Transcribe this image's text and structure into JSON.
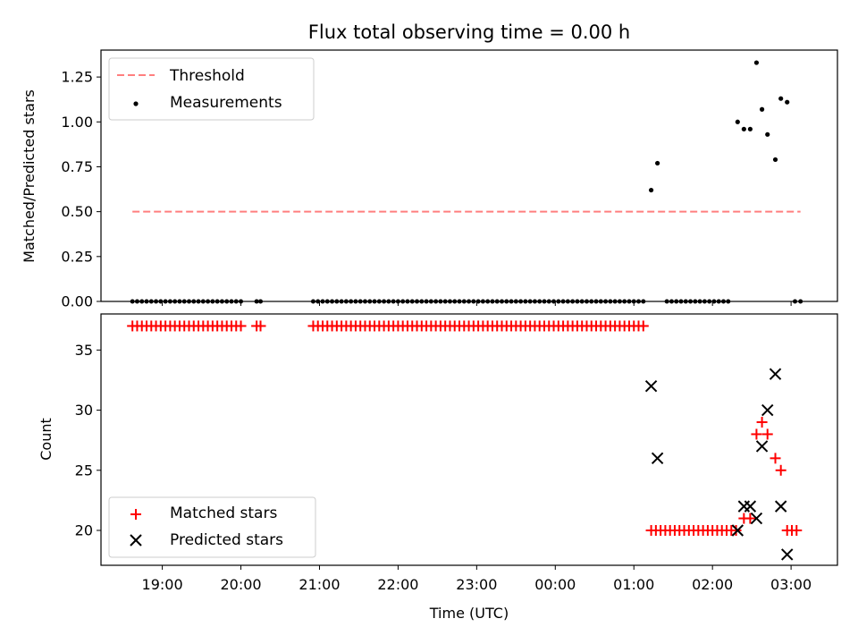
{
  "chart_data": [
    {
      "type": "scatter",
      "title": "Flux total observing time = 0.00 h",
      "xlabel": "",
      "ylabel": "Matched/Predicted stars",
      "xlim": [
        18.22,
        27.59
      ],
      "ylim": [
        0,
        1.4
      ],
      "yticks": [
        0.0,
        0.25,
        0.5,
        0.75,
        1.0,
        1.25
      ],
      "ytick_labels": [
        "0.00",
        "0.25",
        "0.50",
        "0.75",
        "1.00",
        "1.25"
      ],
      "xticks": [
        19,
        20,
        21,
        22,
        23,
        24,
        25,
        26,
        27
      ],
      "legend_position": "top-left",
      "threshold": {
        "name": "Threshold",
        "color": "#ff7f7f",
        "style": "dashed",
        "value": 0.5,
        "x_range": [
          18.62,
          27.12
        ]
      },
      "measurements": {
        "name": "Measurements",
        "color": "#000000",
        "zero_segments": [
          {
            "start": 18.62,
            "end": 20.0,
            "step": 0.06
          },
          {
            "start": 20.2,
            "end": 20.25,
            "step": 0.05
          },
          {
            "start": 20.92,
            "end": 25.15,
            "step": 0.06
          },
          {
            "start": 25.42,
            "end": 26.25,
            "step": 0.06
          },
          {
            "start": 27.05,
            "end": 27.12,
            "step": 0.07
          }
        ],
        "points": [
          {
            "x": 25.22,
            "y": 0.62
          },
          {
            "x": 25.3,
            "y": 0.77
          },
          {
            "x": 26.32,
            "y": 1.0
          },
          {
            "x": 26.4,
            "y": 0.96
          },
          {
            "x": 26.48,
            "y": 0.96
          },
          {
            "x": 26.56,
            "y": 1.33
          },
          {
            "x": 26.63,
            "y": 1.07
          },
          {
            "x": 26.7,
            "y": 0.93
          },
          {
            "x": 26.8,
            "y": 0.79
          },
          {
            "x": 26.87,
            "y": 1.13
          },
          {
            "x": 26.95,
            "y": 1.11
          }
        ]
      }
    },
    {
      "type": "scatter",
      "title": "",
      "xlabel": "Time (UTC)",
      "ylabel": "Count",
      "xlim": [
        18.22,
        27.59
      ],
      "ylim": [
        17.1,
        38.0
      ],
      "yticks": [
        20,
        25,
        30,
        35
      ],
      "ytick_labels": [
        "20",
        "25",
        "30",
        "35"
      ],
      "xticks": [
        19,
        20,
        21,
        22,
        23,
        24,
        25,
        26,
        27
      ],
      "xtick_labels": [
        "19:00",
        "20:00",
        "21:00",
        "22:00",
        "23:00",
        "00:00",
        "01:00",
        "02:00",
        "03:00"
      ],
      "legend_position": "bottom-left",
      "matched": {
        "name": "Matched stars",
        "color": "#ff0000",
        "marker": "+",
        "constant_segments": [
          {
            "start": 18.62,
            "end": 20.0,
            "step": 0.06,
            "value": 37
          },
          {
            "start": 20.2,
            "end": 20.25,
            "step": 0.05,
            "value": 37
          },
          {
            "start": 20.92,
            "end": 25.15,
            "step": 0.06,
            "value": 37
          },
          {
            "start": 25.22,
            "end": 26.32,
            "step": 0.06,
            "value": 20
          },
          {
            "start": 26.95,
            "end": 27.12,
            "step": 0.06,
            "value": 20
          }
        ],
        "points": [
          {
            "x": 26.4,
            "y": 21
          },
          {
            "x": 26.48,
            "y": 21
          },
          {
            "x": 26.56,
            "y": 28
          },
          {
            "x": 26.63,
            "y": 29
          },
          {
            "x": 26.7,
            "y": 28
          },
          {
            "x": 26.8,
            "y": 26
          },
          {
            "x": 26.87,
            "y": 25
          }
        ]
      },
      "predicted": {
        "name": "Predicted stars",
        "color": "#000000",
        "marker": "x",
        "points": [
          {
            "x": 25.22,
            "y": 32
          },
          {
            "x": 25.3,
            "y": 26
          },
          {
            "x": 26.32,
            "y": 20
          },
          {
            "x": 26.4,
            "y": 22
          },
          {
            "x": 26.48,
            "y": 22
          },
          {
            "x": 26.56,
            "y": 21
          },
          {
            "x": 26.63,
            "y": 27
          },
          {
            "x": 26.7,
            "y": 30
          },
          {
            "x": 26.8,
            "y": 33
          },
          {
            "x": 26.87,
            "y": 22
          },
          {
            "x": 26.95,
            "y": 18
          }
        ]
      }
    }
  ]
}
